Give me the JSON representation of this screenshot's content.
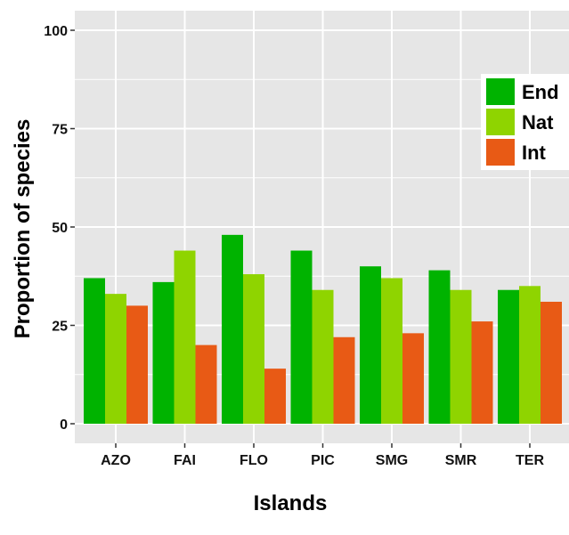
{
  "chart_data": {
    "type": "bar",
    "title": "",
    "xlabel": "Islands",
    "ylabel": "Proportion of species",
    "categories": [
      "AZO",
      "FAI",
      "FLO",
      "PIC",
      "SMG",
      "SMR",
      "TER"
    ],
    "yticks": [
      "0",
      "25",
      "50",
      "75",
      "100"
    ],
    "ylim": [
      0,
      100
    ],
    "grid": true,
    "legend_position": "right",
    "series": [
      {
        "name": "End",
        "color": "#00b300",
        "values": [
          37,
          36,
          48,
          44,
          40,
          39,
          34
        ]
      },
      {
        "name": "Nat",
        "color": "#8fd400",
        "values": [
          33,
          44,
          38,
          34,
          37,
          34,
          35
        ]
      },
      {
        "name": "Int",
        "color": "#e85a15",
        "values": [
          30,
          20,
          14,
          22,
          23,
          26,
          31
        ]
      }
    ]
  }
}
